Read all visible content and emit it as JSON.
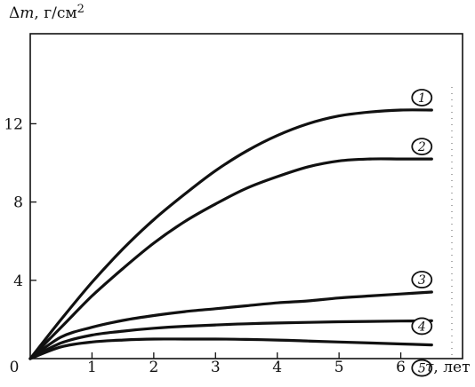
{
  "chart_data": {
    "type": "line",
    "ylabel_prefix": "Δ",
    "ylabel_var": "m",
    "ylabel_unit": ", г/см",
    "ylabel_sup": "2",
    "xlabel_var": "τ",
    "xlabel_unit": ", лет",
    "origin_label": "0",
    "xlim": [
      0,
      7.0
    ],
    "ylim": [
      0,
      16.6
    ],
    "x_ticks": [
      {
        "value": 1,
        "label": "1"
      },
      {
        "value": 2,
        "label": "2"
      },
      {
        "value": 3,
        "label": "3"
      },
      {
        "value": 4,
        "label": "4"
      },
      {
        "value": 5,
        "label": "5"
      },
      {
        "value": 6,
        "label": "6"
      }
    ],
    "y_ticks": [
      {
        "value": 4,
        "label": "4"
      },
      {
        "value": 8,
        "label": "8"
      },
      {
        "value": 12,
        "label": "12"
      }
    ],
    "grid": false,
    "legend": "markers at curve ends",
    "series": [
      {
        "name": "1",
        "x": [
          0,
          0.5,
          1,
          1.5,
          2,
          2.5,
          3,
          3.5,
          4,
          4.5,
          5,
          5.5,
          6,
          6.5
        ],
        "y": [
          0,
          2.0,
          3.9,
          5.6,
          7.1,
          8.4,
          9.6,
          10.6,
          11.4,
          12.0,
          12.4,
          12.6,
          12.7,
          12.7
        ]
      },
      {
        "name": "2",
        "x": [
          0,
          0.5,
          1,
          1.5,
          2,
          2.5,
          3,
          3.5,
          4,
          4.5,
          5,
          5.5,
          6,
          6.5
        ],
        "y": [
          0,
          1.6,
          3.2,
          4.6,
          5.9,
          7.0,
          7.9,
          8.7,
          9.3,
          9.8,
          10.1,
          10.2,
          10.2,
          10.2
        ]
      },
      {
        "name": "3",
        "x": [
          0,
          0.5,
          1,
          1.5,
          2,
          2.5,
          3,
          3.5,
          4,
          4.5,
          5,
          5.5,
          6,
          6.5
        ],
        "y": [
          0,
          1.1,
          1.6,
          1.95,
          2.2,
          2.4,
          2.55,
          2.7,
          2.85,
          2.95,
          3.1,
          3.2,
          3.3,
          3.4
        ]
      },
      {
        "name": "4",
        "x": [
          0,
          0.5,
          1,
          1.5,
          2,
          2.5,
          3,
          3.5,
          4,
          4.5,
          5,
          5.5,
          6,
          6.5
        ],
        "y": [
          0,
          0.8,
          1.2,
          1.4,
          1.55,
          1.65,
          1.72,
          1.78,
          1.82,
          1.85,
          1.88,
          1.9,
          1.92,
          1.93
        ]
      },
      {
        "name": "5",
        "x": [
          0,
          0.5,
          1,
          1.5,
          2,
          2.5,
          3,
          3.5,
          4,
          4.5,
          5,
          5.5,
          6,
          6.5
        ],
        "y": [
          0,
          0.6,
          0.85,
          0.95,
          1.0,
          1.0,
          1.0,
          0.98,
          0.95,
          0.9,
          0.85,
          0.8,
          0.75,
          0.7
        ]
      }
    ]
  }
}
